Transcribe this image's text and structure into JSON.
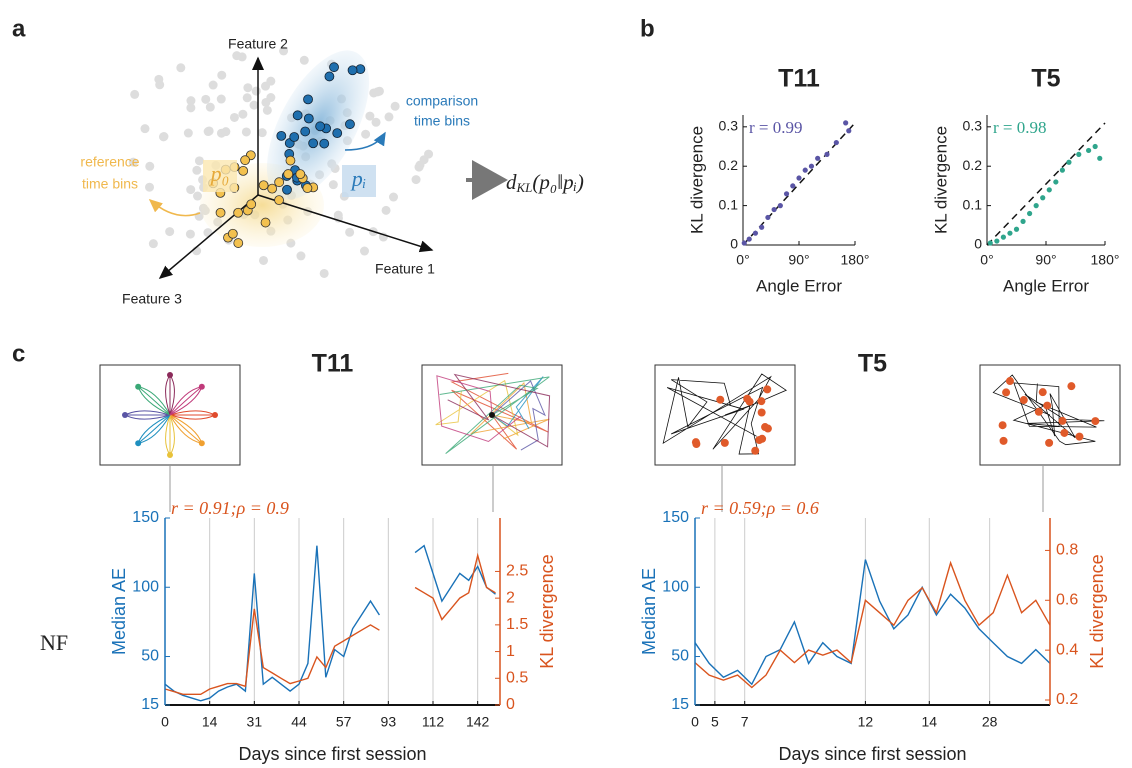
{
  "panel_labels": [
    "a",
    "b",
    "c"
  ],
  "diagram": {
    "axis_labels": [
      "Feature 2",
      "Feature 1",
      "Feature 3"
    ],
    "comparison_label": [
      "comparison",
      "time bins"
    ],
    "reference_label": [
      "reference",
      "time bins"
    ],
    "reference_dist": "p₀",
    "comparison_dist": "pᵢ",
    "formula": "d",
    "formula_sub": "KL",
    "formula_args": "(p₀‖pᵢ)"
  },
  "row_label": "NF",
  "chart_data": [
    {
      "type": "scatter",
      "title": "T11",
      "x": [
        2,
        10,
        20,
        30,
        40,
        50,
        60,
        70,
        80,
        90,
        100,
        110,
        120,
        135,
        150,
        165,
        170
      ],
      "values": [
        0.005,
        0.015,
        0.03,
        0.045,
        0.07,
        0.09,
        0.1,
        0.13,
        0.15,
        0.17,
        0.19,
        0.2,
        0.22,
        0.23,
        0.26,
        0.31,
        0.29
      ],
      "color": "#5a55a5",
      "xlim": [
        0,
        180
      ],
      "ylim": [
        0,
        0.33
      ],
      "xticks": [
        {
          "value": 0,
          "label": "0°"
        },
        {
          "value": 90,
          "label": "90°"
        },
        {
          "value": 180,
          "label": "180°"
        }
      ],
      "yticks": [
        0,
        0.1,
        0.2,
        0.3
      ],
      "xlabel": "Angle Error",
      "ylabel": "KL divergence",
      "annotation": "r = 0.99"
    },
    {
      "type": "scatter",
      "title": "T5",
      "x": [
        5,
        15,
        25,
        35,
        45,
        55,
        65,
        75,
        85,
        95,
        105,
        115,
        125,
        140,
        155,
        165,
        172
      ],
      "values": [
        0.005,
        0.01,
        0.02,
        0.03,
        0.04,
        0.06,
        0.08,
        0.1,
        0.12,
        0.14,
        0.16,
        0.19,
        0.21,
        0.23,
        0.24,
        0.25,
        0.22
      ],
      "color": "#2fa58c",
      "xlim": [
        0,
        180
      ],
      "ylim": [
        0,
        0.33
      ],
      "xticks": [
        {
          "value": 0,
          "label": "0°"
        },
        {
          "value": 90,
          "label": "90°"
        },
        {
          "value": 180,
          "label": "180°"
        }
      ],
      "yticks": [
        0,
        0.1,
        0.2,
        0.3
      ],
      "xlabel": "Angle Error",
      "ylabel": "KL divergence",
      "annotation": "r = 0.98"
    },
    {
      "type": "line",
      "title": "T11",
      "x": [
        0,
        2,
        4,
        6,
        8,
        10,
        12,
        14,
        16,
        18,
        20,
        22,
        24,
        26,
        28,
        30,
        32,
        34,
        36,
        38,
        40,
        42,
        44,
        46,
        48,
        50,
        52,
        54,
        56,
        58,
        60,
        62,
        64,
        66,
        68,
        70,
        72,
        74
      ],
      "series": [
        {
          "name": "Median AE",
          "color": "#1a72b8",
          "values": [
            30,
            25,
            22,
            20,
            18,
            20,
            25,
            28,
            30,
            25,
            110,
            30,
            35,
            30,
            25,
            30,
            45,
            130,
            35,
            55,
            50,
            70,
            80,
            90,
            80,
            null,
            25,
            null,
            125,
            130,
            110,
            90,
            100,
            110,
            105,
            115,
            100,
            95
          ]
        },
        {
          "name": "KL divergence",
          "color": "#d9541e",
          "axis": "y2",
          "values": [
            0.3,
            0.25,
            0.2,
            0.2,
            0.2,
            0.3,
            0.35,
            0.4,
            0.4,
            0.35,
            1.8,
            0.7,
            0.6,
            0.5,
            0.4,
            0.45,
            0.5,
            0.9,
            0.7,
            1.1,
            1.2,
            1.3,
            1.4,
            1.5,
            1.4,
            null,
            0.6,
            null,
            2.2,
            2.1,
            2.0,
            1.6,
            1.8,
            2.0,
            2.1,
            2.8,
            2.2,
            2.1
          ]
        }
      ],
      "xlim": [
        0,
        75
      ],
      "xticks": [
        {
          "value": 0,
          "label": "0"
        },
        {
          "value": 10,
          "label": "14"
        },
        {
          "value": 20,
          "label": "31"
        },
        {
          "value": 30,
          "label": "44"
        },
        {
          "value": 40,
          "label": "57"
        },
        {
          "value": 50,
          "label": "93"
        },
        {
          "value": 60,
          "label": "112"
        },
        {
          "value": 70,
          "label": "142"
        }
      ],
      "ylim": [
        15,
        150
      ],
      "yticks": [
        15,
        50,
        100,
        150
      ],
      "y2lim": [
        0,
        3.5
      ],
      "y2ticks": [
        0,
        0.5,
        1,
        1.5,
        2,
        2.5
      ],
      "xlabel": "Days since first session",
      "annotation": "r = 0.91;ρ = 0.9",
      "grid": true
    },
    {
      "type": "line",
      "title": "T5",
      "x": [
        0,
        4,
        8,
        12,
        16,
        20,
        24,
        28,
        32,
        36,
        40,
        44,
        48,
        52,
        56,
        60,
        64,
        68,
        72,
        76,
        80,
        84,
        88,
        92,
        96,
        100
      ],
      "series": [
        {
          "name": "Median AE",
          "color": "#1a72b8",
          "values": [
            60,
            45,
            35,
            40,
            30,
            50,
            55,
            75,
            45,
            60,
            50,
            45,
            120,
            90,
            70,
            80,
            100,
            80,
            95,
            85,
            70,
            60,
            50,
            45,
            55,
            45
          ]
        },
        {
          "name": "KL divergence",
          "color": "#d9541e",
          "axis": "y2",
          "values": [
            0.35,
            0.3,
            0.28,
            0.3,
            0.25,
            0.3,
            0.4,
            0.35,
            0.4,
            0.38,
            0.4,
            0.35,
            0.6,
            0.55,
            0.5,
            0.6,
            0.65,
            0.55,
            0.75,
            0.6,
            0.5,
            0.55,
            0.7,
            0.55,
            0.6,
            0.5
          ]
        }
      ],
      "xlim": [
        0,
        100
      ],
      "xticks": [
        {
          "value": 0,
          "label": "0"
        },
        {
          "value": 5.6,
          "label": "5"
        },
        {
          "value": 14,
          "label": "7"
        },
        {
          "value": 48,
          "label": "12"
        },
        {
          "value": 66,
          "label": "14"
        },
        {
          "value": 83,
          "label": "28"
        }
      ],
      "ylim": [
        15,
        150
      ],
      "yticks": [
        15,
        50,
        100,
        150
      ],
      "y2lim": [
        0.18,
        0.93
      ],
      "y2ticks": [
        0.2,
        0.4,
        0.6,
        0.8
      ],
      "xlabel": "Days since first session",
      "annotation": "r = 0.59;ρ = 0.6",
      "grid": true
    }
  ]
}
